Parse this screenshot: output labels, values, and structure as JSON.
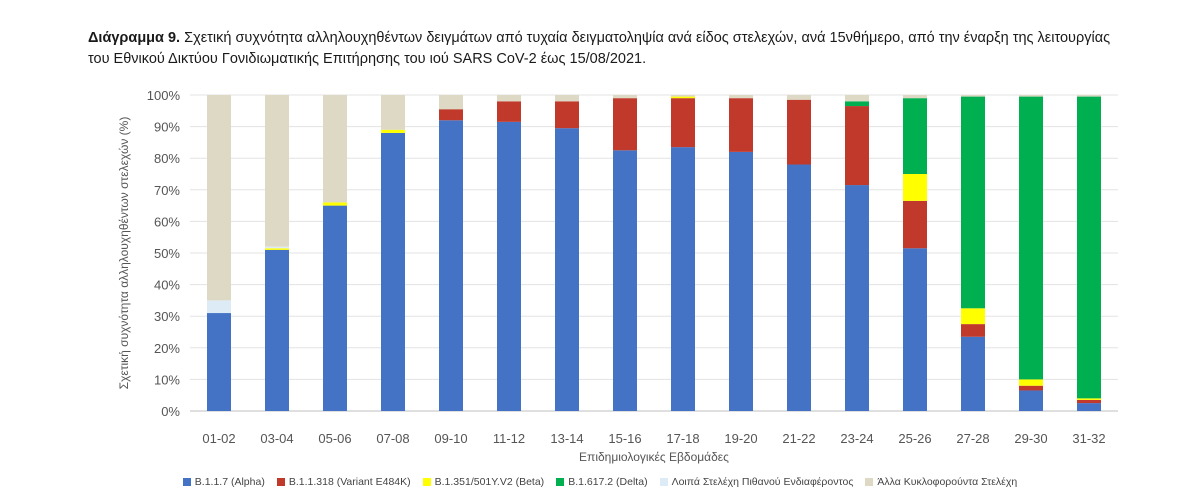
{
  "caption": {
    "prefix": "Διάγραμμα 9.",
    "text": "Σχετική συχνότητα αλληλουχηθέντων δειγμάτων από τυχαία δειγματοληψία ανά είδος στελεχών, ανά 15νθήμερο, από την έναρξη της λειτουργίας του Εθνικού Δικτύου Γονιδιωματικής Επιτήρησης του ιού SARS CoV-2 έως 15/08/2021."
  },
  "chart_data": {
    "type": "bar",
    "stacked": true,
    "xlabel": "Επιδημιολογικές Εβδομάδες",
    "ylabel": "Σχετική συχνότητα αλληλουχηθέντων στελεχών (%)",
    "ylim": [
      0,
      100
    ],
    "yticks": [
      "0%",
      "10%",
      "20%",
      "30%",
      "40%",
      "50%",
      "60%",
      "70%",
      "80%",
      "90%",
      "100%"
    ],
    "grid": true,
    "legend_position": "bottom",
    "categories": [
      "01-02",
      "03-04",
      "05-06",
      "07-08",
      "09-10",
      "11-12",
      "13-14",
      "15-16",
      "17-18",
      "19-20",
      "21-22",
      "23-24",
      "25-26",
      "27-28",
      "29-30",
      "31-32"
    ],
    "series": [
      {
        "name": "B.1.1.7 (Alpha)",
        "color": "#4472C4",
        "values": [
          31,
          51,
          65,
          88,
          92,
          91.5,
          89.5,
          82.5,
          83.5,
          82,
          78,
          71.5,
          51.5,
          23.5,
          6.5,
          2.5
        ]
      },
      {
        "name": "B.1.1.318 (Variant E484K)",
        "color": "#C0392B",
        "values": [
          0,
          0,
          0,
          0,
          3.5,
          6.5,
          8.5,
          16.5,
          15.5,
          17,
          20.5,
          25,
          15,
          4,
          1.5,
          1
        ]
      },
      {
        "name": "B.1.351/501Y.V2 (Beta)",
        "color": "#FFFF00",
        "values": [
          0,
          0.5,
          1,
          1,
          0,
          0,
          0,
          0,
          0.5,
          0,
          0,
          0,
          8.5,
          5,
          2,
          0.5
        ]
      },
      {
        "name": "B.1.617.2 (Delta)",
        "color": "#00B050",
        "values": [
          0,
          0,
          0,
          0,
          0,
          0,
          0,
          0,
          0,
          0,
          0,
          1.5,
          24,
          67,
          89.5,
          95.5
        ]
      },
      {
        "name": "Λοιπά Στελέχη Πιθανού Ενδιαφέροντος",
        "color": "#DDEBF7",
        "values": [
          4,
          0.5,
          0,
          0,
          0,
          0,
          0,
          0,
          0,
          0,
          0,
          0,
          0,
          0,
          0,
          0
        ]
      },
      {
        "name": "Άλλα Κυκλοφορούντα Στελέχη",
        "color": "#DDD9C4",
        "values": [
          65,
          48,
          34,
          11,
          4.5,
          2,
          2,
          1,
          0.5,
          1,
          1.5,
          2,
          1,
          0.5,
          0.5,
          0.5
        ]
      }
    ]
  }
}
